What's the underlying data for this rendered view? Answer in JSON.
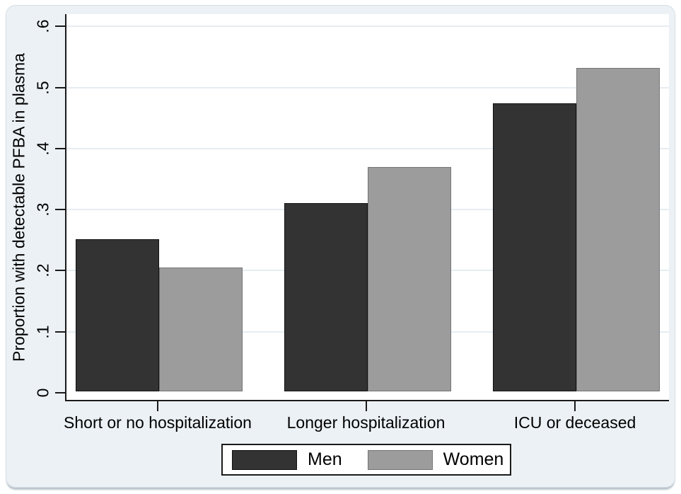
{
  "chart_data": {
    "type": "bar",
    "title": "",
    "xlabel": "",
    "ylabel": "Proportion with detectable PFBA in plasma",
    "categories": [
      "Short or no hospitalization",
      "Longer hospitalization",
      "ICU or deceased"
    ],
    "series": [
      {
        "name": "Men",
        "color": "#333333",
        "border_color": "#111111",
        "values": [
          0.249,
          0.308,
          0.472
        ]
      },
      {
        "name": "Women",
        "color": "#9c9c9c",
        "border_color": "#757575",
        "values": [
          0.203,
          0.367,
          0.529
        ]
      }
    ],
    "ylim": [
      0,
      0.6
    ],
    "yticks": [
      {
        "value": 0.0,
        "label": "0"
      },
      {
        "value": 0.1,
        "label": ".1"
      },
      {
        "value": 0.2,
        "label": ".2"
      },
      {
        "value": 0.3,
        "label": ".3"
      },
      {
        "value": 0.4,
        "label": ".4"
      },
      {
        "value": 0.5,
        "label": ".5"
      },
      {
        "value": 0.6,
        "label": ".6"
      }
    ],
    "grid": true,
    "legend_position": "bottom-center",
    "legend_entries": [
      "Men",
      "Women"
    ]
  },
  "style": {
    "canvas_bg": "#ffffff",
    "card_bg": "#ecf1f5",
    "plot_bg": "#ffffff",
    "gridline_color": "#e6edf2",
    "axis_color": "#1a1a1a",
    "text_color": "#000000",
    "legend_bg": "#ffffff",
    "legend_border": "#1a1a1a"
  }
}
